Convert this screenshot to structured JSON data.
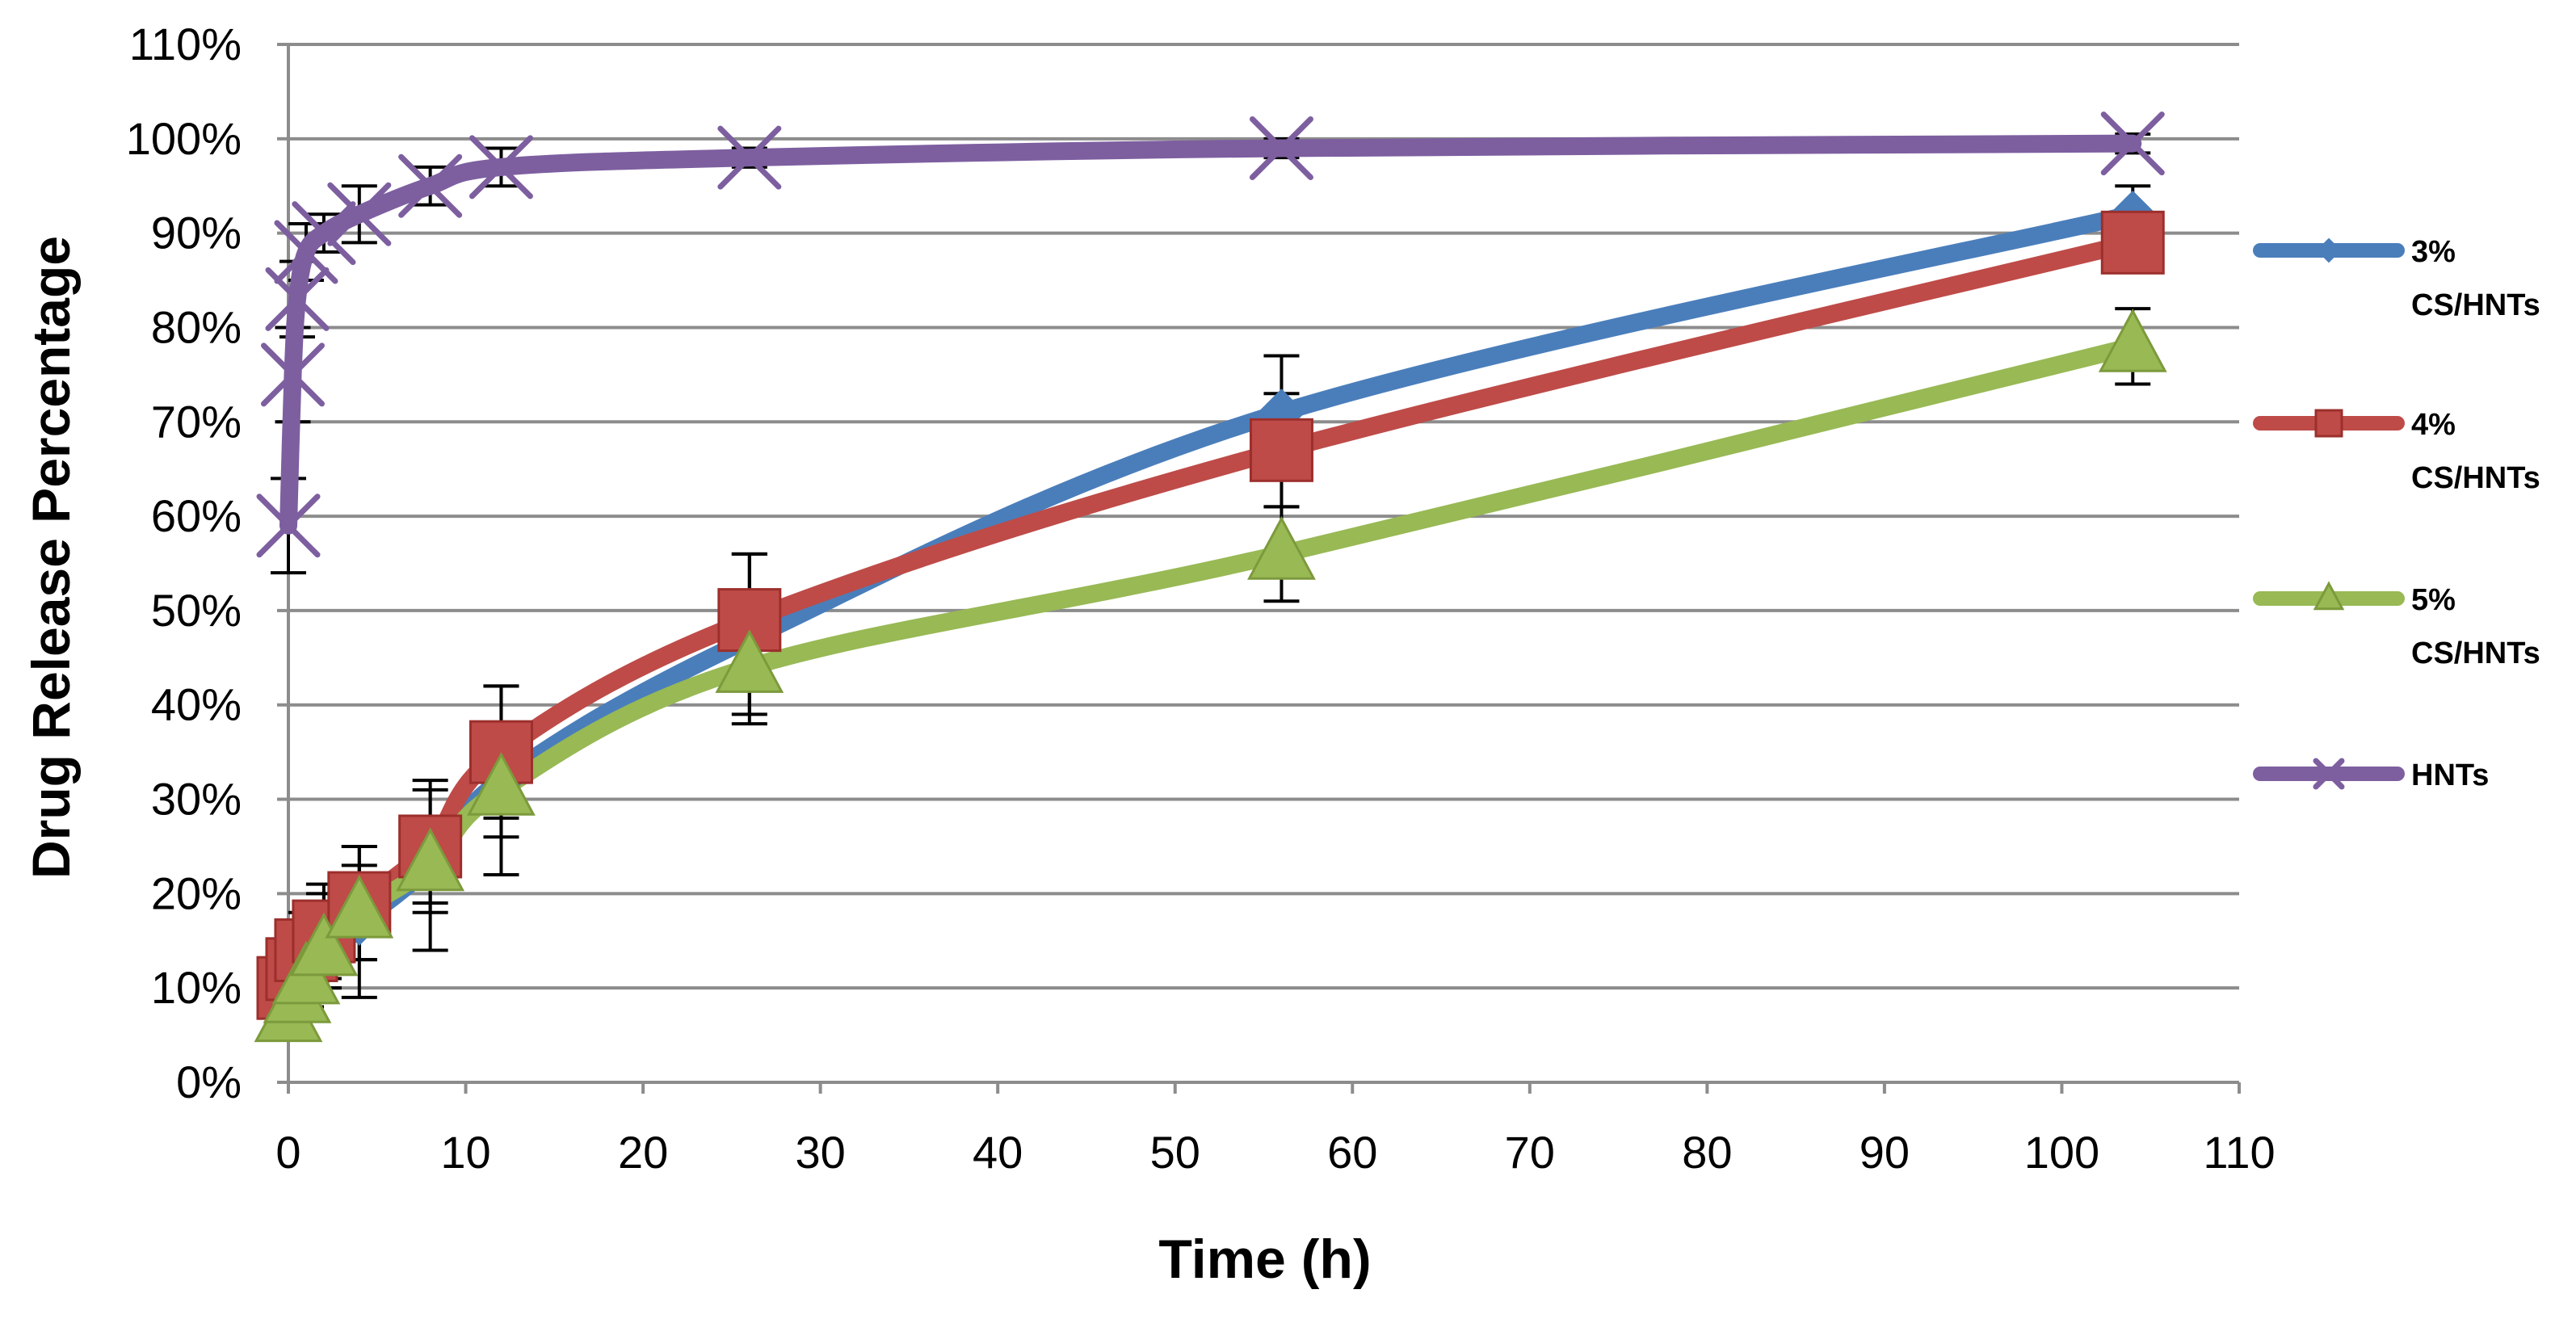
{
  "chart_data": {
    "type": "line",
    "title": "",
    "xlabel": "Time (h)",
    "ylabel": "Drug Release Percentage",
    "xlim": [
      0,
      110
    ],
    "ylim": [
      0,
      110
    ],
    "xticks": [
      "0",
      "10",
      "20",
      "30",
      "40",
      "50",
      "60",
      "70",
      "80",
      "90",
      "100",
      "110"
    ],
    "yticks": [
      "0%",
      "10%",
      "20%",
      "30%",
      "40%",
      "50%",
      "60%",
      "70%",
      "80%",
      "90%",
      "100%",
      "110%"
    ],
    "grid": "horizontal",
    "legend_position": "right",
    "series": [
      {
        "name": "3% CS/HNTs",
        "label_lines": [
          "3%",
          "CS/HNTs"
        ],
        "color": "#4a7ebb",
        "marker": "diamond",
        "x": [
          0,
          0.5,
          1,
          2,
          4,
          8,
          12,
          26,
          56,
          104
        ],
        "y": [
          8,
          10,
          12,
          15,
          17,
          23,
          32,
          47,
          71,
          92
        ],
        "err": [
          3,
          3,
          4,
          5,
          8,
          9,
          10,
          9,
          6,
          3
        ]
      },
      {
        "name": "4% CS/HNTs",
        "label_lines": [
          "4%",
          "CS/HNTs"
        ],
        "color": "#be4b48",
        "marker": "square",
        "x": [
          0,
          0.5,
          1,
          2,
          4,
          8,
          12,
          26,
          56,
          104
        ],
        "y": [
          10,
          12,
          14,
          16,
          19,
          25,
          35,
          49,
          67,
          89
        ],
        "err": [
          3,
          3,
          4,
          5,
          6,
          6,
          7,
          7,
          6,
          3
        ]
      },
      {
        "name": "5% CS/HNTs",
        "label_lines": [
          "5%",
          "CS/HNTs"
        ],
        "color": "#98b954",
        "marker": "triangle",
        "x": [
          0,
          0.5,
          1,
          2,
          4,
          8,
          12,
          26,
          56,
          104
        ],
        "y": [
          7,
          9,
          11,
          14,
          18,
          23,
          31,
          44,
          56,
          78
        ],
        "err": [
          2,
          2,
          3,
          4,
          5,
          5,
          5,
          5,
          5,
          4
        ]
      },
      {
        "name": "HNTs",
        "label_lines": [
          "HNTs"
        ],
        "color": "#7d5fa0",
        "marker": "x",
        "x": [
          0,
          0.25,
          0.5,
          1,
          2,
          4,
          8,
          12,
          26,
          56,
          104
        ],
        "y": [
          59,
          75,
          83,
          88,
          90,
          92,
          95,
          97,
          98,
          99,
          99.5
        ],
        "err": [
          5,
          5,
          4,
          3,
          2,
          3,
          2,
          2,
          1,
          1,
          1
        ]
      }
    ]
  }
}
